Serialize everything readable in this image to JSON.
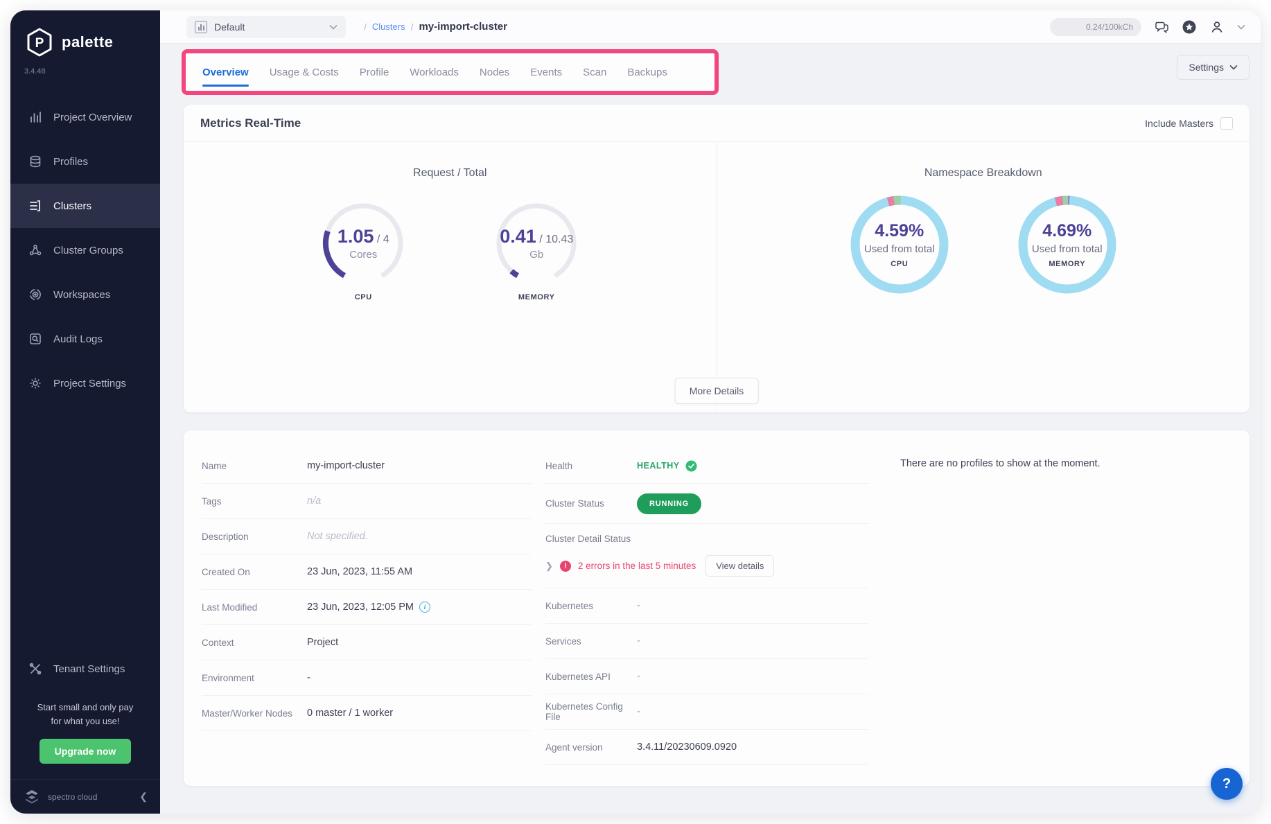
{
  "colors": {
    "sidebar_bg": "#151a31",
    "sidebar_active_bg": "#2b3048",
    "accent_blue": "#1c6cd8",
    "annotation_pink": "#f2477e",
    "gauge_purple": "#4c4296",
    "gauge_track": "#e8e9ee",
    "donut_blue": "#9fdcf2",
    "donut_pink": "#e87ea1",
    "donut_green": "#9ecfa6",
    "donut_purple": "#8d8bd1",
    "success_green": "#1e9e5a",
    "healthy_green": "#27a568",
    "error_pink": "#e8446d",
    "upgrade_green": "#4cc36f",
    "help_blue": "#1765d2"
  },
  "sidebar": {
    "logo_text": "palette",
    "version": "3.4.48",
    "items": [
      {
        "label": "Project Overview"
      },
      {
        "label": "Profiles"
      },
      {
        "label": "Clusters"
      },
      {
        "label": "Cluster Groups"
      },
      {
        "label": "Workspaces"
      },
      {
        "label": "Audit Logs"
      },
      {
        "label": "Project Settings"
      }
    ],
    "tenant_settings_label": "Tenant Settings",
    "promo_line1": "Start small and only pay",
    "promo_line2": "for what you use!",
    "upgrade_button": "Upgrade now",
    "footer_brand": "spectro cloud",
    "collapse_glyph": "❮"
  },
  "topbar": {
    "project_selector": "Default",
    "breadcrumb": {
      "sep": "/",
      "root": "Clusters",
      "current": "my-import-cluster"
    },
    "credits_badge": "0.24/100kCh"
  },
  "tabs": {
    "items": [
      "Overview",
      "Usage & Costs",
      "Profile",
      "Workloads",
      "Nodes",
      "Events",
      "Scan",
      "Backups"
    ],
    "active": "Overview",
    "settings_button": "Settings"
  },
  "metrics": {
    "title": "Metrics Real-Time",
    "include_masters_label": "Include Masters",
    "more_details_button": "More Details",
    "request_total": {
      "title": "Request / Total",
      "cpu": {
        "used": "1.05",
        "total": "4",
        "separator": "/",
        "unit": "Cores",
        "label": "CPU"
      },
      "memory": {
        "used": "0.41",
        "total": "10.43",
        "separator": "/",
        "unit": "Gb",
        "label": "MEMORY"
      }
    },
    "namespace_breakdown": {
      "title": "Namespace Breakdown",
      "cpu": {
        "percent": "4.59%",
        "subtitle": "Used from total",
        "label": "CPU",
        "segments": [
          {
            "color": "#e87ea1",
            "fraction": 0.022
          },
          {
            "color": "#9ecfa6",
            "fraction": 0.024
          }
        ]
      },
      "memory": {
        "percent": "4.69%",
        "subtitle": "Used from total",
        "label": "MEMORY",
        "segments": [
          {
            "color": "#e87ea1",
            "fraction": 0.026
          },
          {
            "color": "#9ecfa6",
            "fraction": 0.018
          },
          {
            "color": "#8d8bd1",
            "fraction": 0.006
          }
        ]
      }
    }
  },
  "details": {
    "info": [
      {
        "label": "Name",
        "value": "my-import-cluster"
      },
      {
        "label": "Tags",
        "value": "n/a"
      },
      {
        "label": "Description",
        "value": "Not specified."
      },
      {
        "label": "Created On",
        "value": "23 Jun, 2023, 11:55 AM"
      },
      {
        "label": "Last Modified",
        "value": "23 Jun, 2023, 12:05 PM"
      },
      {
        "label": "Context",
        "value": "Project"
      },
      {
        "label": "Environment",
        "value": "-"
      },
      {
        "label": "Master/Worker Nodes",
        "value": "0 master / 1 worker"
      }
    ],
    "status": {
      "health_label": "Health",
      "health_value": "HEALTHY",
      "cluster_status_label": "Cluster Status",
      "cluster_status_value": "RUNNING",
      "detail_status_label": "Cluster Detail Status",
      "error_badge": "!",
      "error_text": "2 errors in the last 5 minutes",
      "view_details_button": "View details",
      "rows": [
        {
          "label": "Kubernetes",
          "value": "-"
        },
        {
          "label": "Services",
          "value": "-"
        },
        {
          "label": "Kubernetes API",
          "value": "-"
        },
        {
          "label": "Kubernetes Config File",
          "value": "-"
        },
        {
          "label": "Agent version",
          "value": "3.4.11/20230609.0920"
        }
      ]
    }
  },
  "profiles_panel": {
    "empty_message": "There are no profiles to show at the moment."
  },
  "help_button": "?"
}
